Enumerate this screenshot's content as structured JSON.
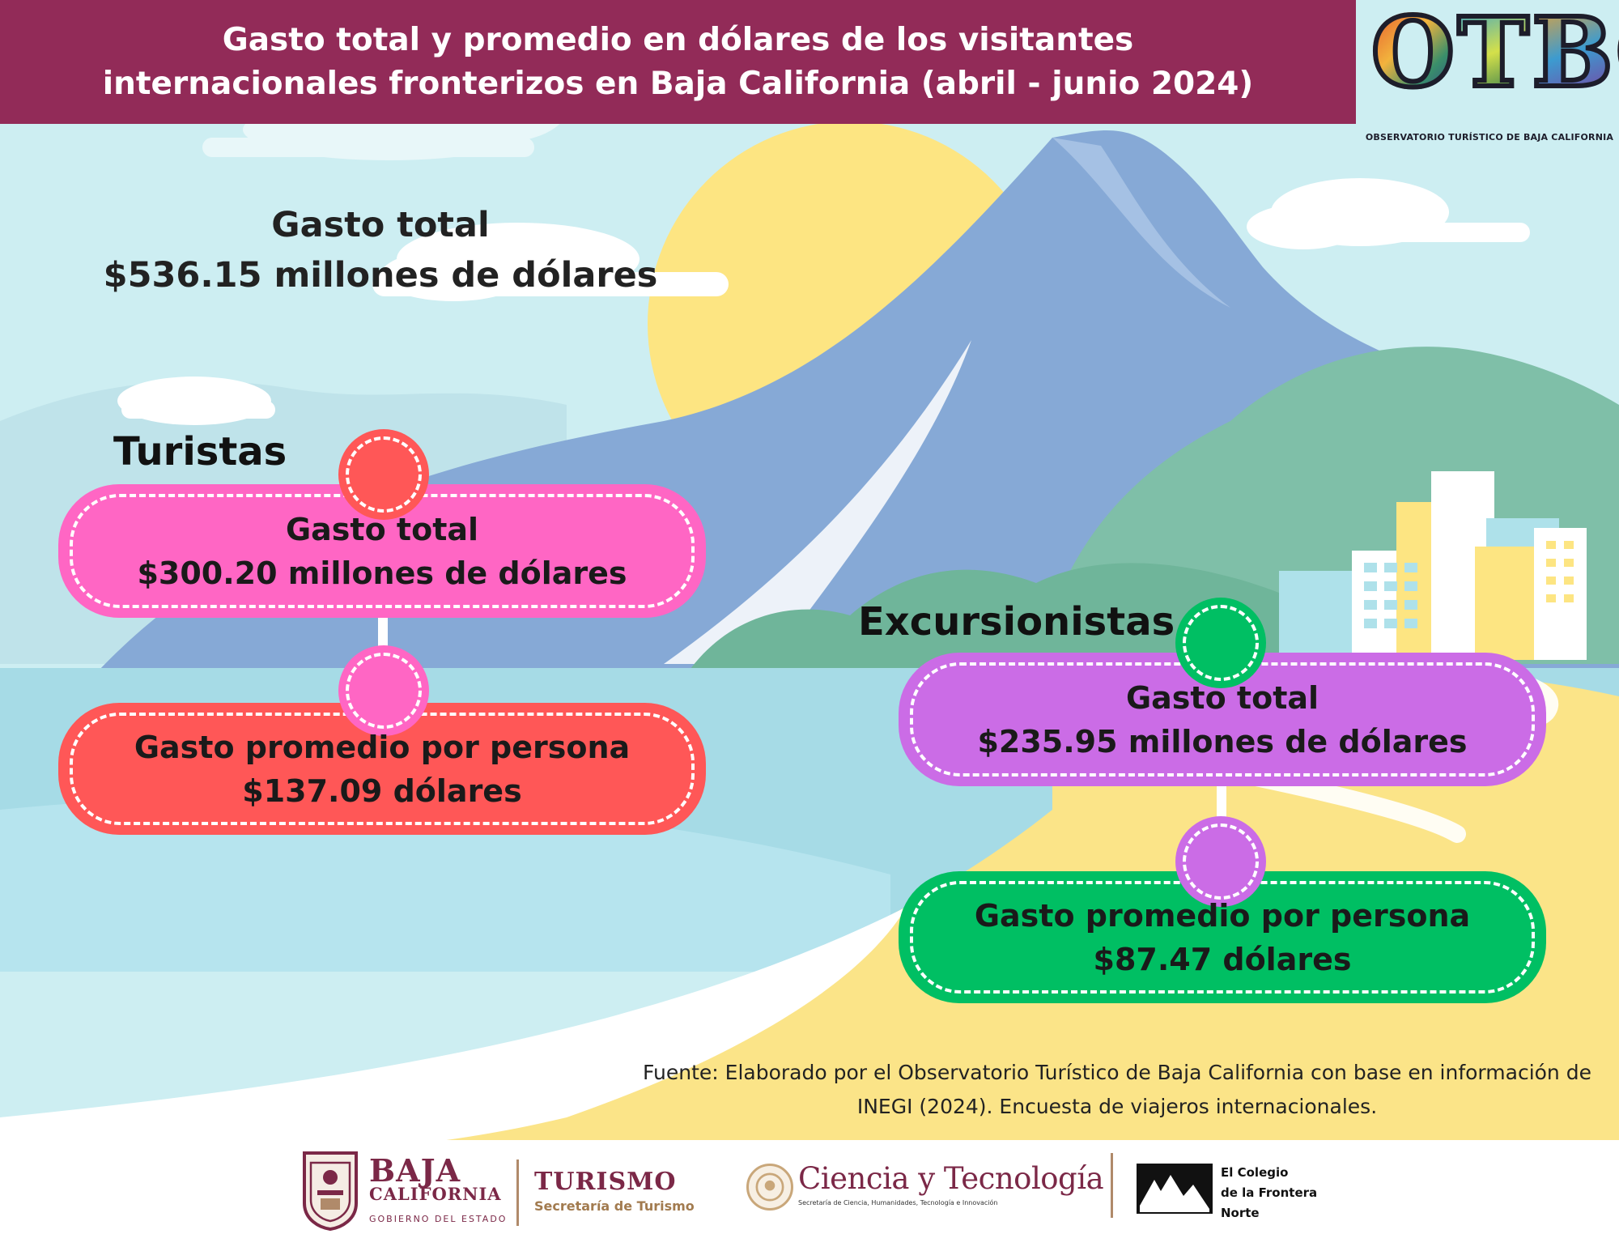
{
  "header": {
    "title_line1": "Gasto total y promedio en dólares de los visitantes",
    "title_line2": "internacionales fronterizos en Baja California (abril - junio 2024)"
  },
  "logo": {
    "letters": [
      "O",
      "T",
      "B",
      "C"
    ],
    "subtitle": "OBSERVATORIO TURÍSTICO DE BAJA CALIFORNIA"
  },
  "total": {
    "title": "Gasto total",
    "value": "$536.15 millones de dólares"
  },
  "turistas": {
    "heading": "Turistas",
    "gasto_total_label": "Gasto total",
    "gasto_total_value": "$300.20 millones de dólares",
    "promedio_label": "Gasto promedio por persona",
    "promedio_value": "$137.09 dólares"
  },
  "excursionistas": {
    "heading": "Excursionistas",
    "gasto_total_label": "Gasto total",
    "gasto_total_value": "$235.95 millones de dólares",
    "promedio_label": "Gasto promedio por persona",
    "promedio_value": "$87.47 dólares"
  },
  "source": {
    "line1": "Fuente: Elaborado por el Observatorio Turístico de Baja California con base en información de",
    "line2": "INEGI (2024). Encuesta de viajeros internacionales."
  },
  "footer": {
    "baja_california": {
      "name_line1": "BAJA",
      "name_line2": "CALIFORNIA",
      "name_line3": "GOBIERNO DEL ESTADO"
    },
    "turismo": {
      "name": "TURISMO",
      "subtitle": "Secretaría de Turismo"
    },
    "ciencia": {
      "name": "Ciencia y Tecnología",
      "subtitle": "Secretaría de Ciencia, Humanidades, Tecnología e Innovación"
    },
    "colef": {
      "line1": "El Colegio",
      "line2": "de la Frontera",
      "line3": "Norte"
    }
  },
  "colors": {
    "header": "#922b58",
    "pink": "#ff66c4",
    "coral": "#ff5757",
    "purple": "#cb6ce6",
    "green": "#00bf63",
    "sky": "#cdeef2",
    "sun": "#fde582",
    "mountain": "#86a9d6",
    "sea": "#a6dbe6",
    "sand": "#fbe488"
  }
}
